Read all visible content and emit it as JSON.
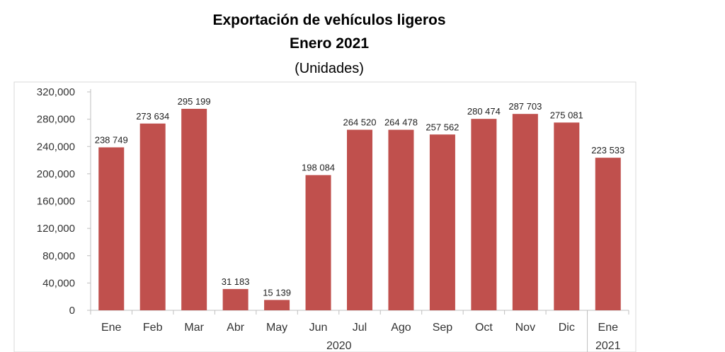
{
  "chart_data": {
    "type": "bar",
    "title": "Exportación de vehículos ligeros",
    "subtitle": "Enero 2021",
    "unit_label": "(Unidades)",
    "categories": [
      "Ene",
      "Feb",
      "Mar",
      "Abr",
      "May",
      "Jun",
      "Jul",
      "Ago",
      "Sep",
      "Oct",
      "Nov",
      "Dic",
      "Ene"
    ],
    "year_labels": [
      {
        "label": "2020",
        "span": [
          0,
          11
        ]
      },
      {
        "label": "2021",
        "span": [
          12,
          12
        ]
      }
    ],
    "values": [
      238749,
      273634,
      295199,
      31183,
      15139,
      198084,
      264520,
      264478,
      257562,
      280474,
      287703,
      275081,
      223533
    ],
    "value_labels": [
      "238 749",
      "273 634",
      "295 199",
      "31 183",
      "15 139",
      "198 084",
      "264 520",
      "264 478",
      "257 562",
      "280 474",
      "287 703",
      "275 081",
      "223 533"
    ],
    "yticks": [
      "0",
      "40,000",
      "80,000",
      "120,000",
      "160,000",
      "200,000",
      "240,000",
      "280,000",
      "320,000"
    ],
    "ylim": [
      0,
      320000
    ],
    "grid": false,
    "bar_color": "#c0504d"
  }
}
